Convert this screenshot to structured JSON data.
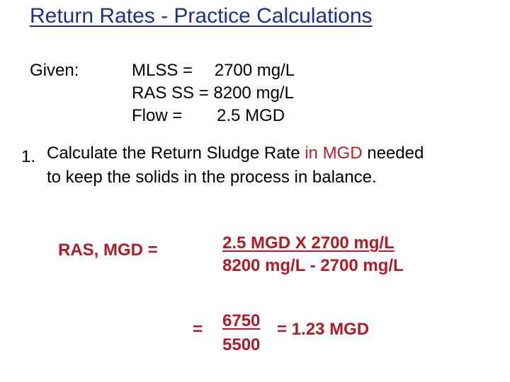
{
  "title": "Return Rates - Practice Calculations",
  "given": {
    "label": "Given:",
    "lines": [
      {
        "name": "MLSS =",
        "value": "2700 mg/L"
      },
      {
        "name": "RAS SS =",
        "value": "8200 mg/L"
      },
      {
        "name": "Flow =",
        "value": "2.5 MGD"
      }
    ]
  },
  "question": {
    "number": "1.",
    "line1_prefix": "Calculate the Return Sludge Rate ",
    "line1_highlight": "in MGD",
    "line1_suffix": " needed",
    "line2": "to keep the solids in the process in balance."
  },
  "calculation": {
    "label": "RAS, MGD =",
    "numerator": "2.5 MGD X 2700 mg/L",
    "denominator": "8200 mg/L - 2700 mg/L",
    "equals": "=",
    "result_numerator": "6750",
    "result_denominator": "5500",
    "result": "= 1.23 MGD"
  },
  "colors": {
    "title": "#1f2f8a",
    "highlight": "#b8212b",
    "calc": "#b01c25"
  }
}
